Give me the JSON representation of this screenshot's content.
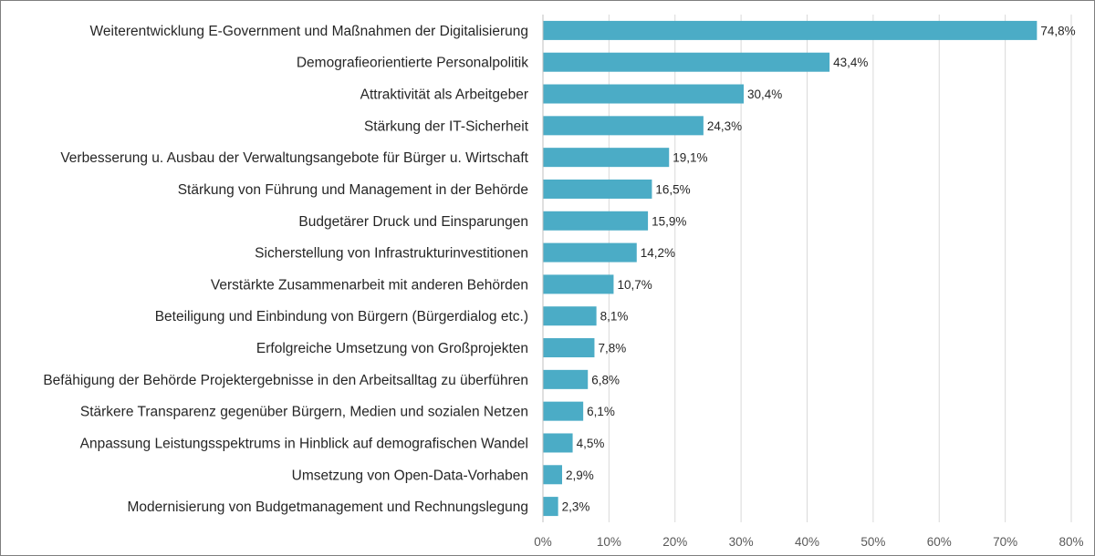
{
  "chart_data": {
    "type": "bar",
    "orientation": "horizontal",
    "categories": [
      "Weiterentwicklung E-Government und Maßnahmen der Digitalisierung",
      "Demografieorientierte Personalpolitik",
      "Attraktivität als Arbeitgeber",
      "Stärkung der IT-Sicherheit",
      "Verbesserung u. Ausbau der Verwaltungsangebote für Bürger u. Wirtschaft",
      "Stärkung von Führung und Management in der Behörde",
      "Budgetärer Druck und Einsparungen",
      "Sicherstellung von Infrastrukturinvestitionen",
      "Verstärkte Zusammenarbeit mit anderen Behörden",
      "Beteiligung und Einbindung von Bürgern (Bürgerdialog etc.)",
      "Erfolgreiche Umsetzung von Großprojekten",
      "Befähigung der Behörde Projektergebnisse in den Arbeitsalltag zu überführen",
      "Stärkere Transparenz gegenüber Bürgern, Medien und sozialen Netzen",
      "Anpassung Leistungsspektrums in Hinblick auf demografischen Wandel",
      "Umsetzung von Open-Data-Vorhaben",
      "Modernisierung von Budgetmanagement und Rechnungslegung"
    ],
    "values": [
      74.8,
      43.4,
      30.4,
      24.3,
      19.1,
      16.5,
      15.9,
      14.2,
      10.7,
      8.1,
      7.8,
      6.8,
      6.1,
      4.5,
      2.9,
      2.3
    ],
    "value_labels": [
      "74,8%",
      "43,4%",
      "30,4%",
      "24,3%",
      "19,1%",
      "16,5%",
      "15,9%",
      "14,2%",
      "10,7%",
      "8,1%",
      "7,8%",
      "6,8%",
      "6,1%",
      "4,5%",
      "2,9%",
      "2,3%"
    ],
    "x_ticks": [
      0,
      10,
      20,
      30,
      40,
      50,
      60,
      70,
      80
    ],
    "x_tick_labels": [
      "0%",
      "10%",
      "20%",
      "30%",
      "40%",
      "50%",
      "60%",
      "70%",
      "80%"
    ],
    "xlim": [
      0,
      80
    ],
    "title": "",
    "xlabel": "",
    "ylabel": "",
    "grid": true,
    "legend": "none",
    "bar_color": "#4BACC6",
    "grid_color": "#D9D9D9"
  }
}
